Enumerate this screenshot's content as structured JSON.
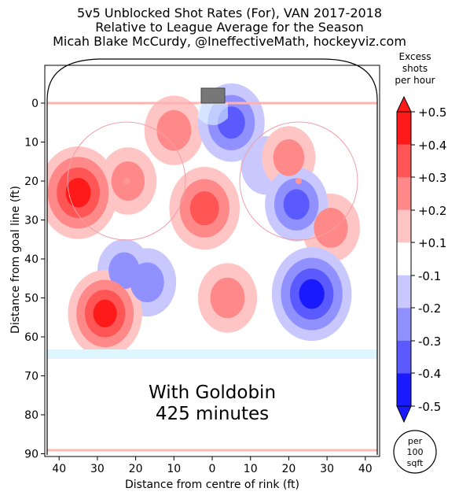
{
  "header": {
    "title": "5v5 Unblocked Shot Rates (For), VAN 2017-2018",
    "subtitle": "Relative to League Average for the Season",
    "credit": "Micah Blake McCurdy, @IneffectiveMath, hockeyviz.com"
  },
  "overlay": {
    "line1": "With Goldobin",
    "line2": "425 minutes"
  },
  "unit_badge": {
    "line1": "per",
    "line2": "100",
    "line3": "sqft"
  },
  "chart_data": {
    "type": "heatmap",
    "title": "5v5 Unblocked Shot Rates (For), VAN 2017-2018",
    "subtitle": "Relative to League Average for the Season",
    "xlabel": "Distance from centre of rink (ft)",
    "ylabel": "Distance from goal line (ft)",
    "xlim": [
      43,
      -43
    ],
    "ylim": [
      90,
      -10
    ],
    "x_ticks": [
      40,
      30,
      20,
      10,
      0,
      10,
      20,
      30,
      40
    ],
    "x_tick_values": [
      -40,
      -30,
      -20,
      -10,
      0,
      10,
      20,
      30,
      40
    ],
    "y_ticks": [
      0,
      10,
      20,
      30,
      40,
      50,
      60,
      70,
      80,
      90
    ],
    "grid": false,
    "colorbar": {
      "title": [
        "Excess",
        "shots",
        "per hour"
      ],
      "tick_labels": [
        "+0.5",
        "+0.4",
        "+0.3",
        "+0.2",
        "+0.1",
        "-0.1",
        "-0.2",
        "-0.3",
        "-0.4",
        "-0.5"
      ],
      "levels": [
        0.5,
        0.4,
        0.3,
        0.2,
        0.1,
        -0.1,
        -0.2,
        -0.3,
        -0.4,
        -0.5
      ],
      "colors": [
        "#ff1a1a",
        "#ff5555",
        "#ff8888",
        "#ffc4c4",
        "#ffffff",
        "#c8c8ff",
        "#9090ff",
        "#5a5aff",
        "#1a1aff"
      ]
    },
    "hotspots": [
      {
        "x": 35,
        "y": 23,
        "value": 0.47
      },
      {
        "x": 28,
        "y": 54,
        "value": 0.42
      },
      {
        "x": 2,
        "y": 27,
        "value": 0.38
      },
      {
        "x": 22,
        "y": 20,
        "value": 0.24
      },
      {
        "x": 10,
        "y": 7,
        "value": 0.26
      },
      {
        "x": -4,
        "y": 50,
        "value": 0.26
      },
      {
        "x": -31,
        "y": 32,
        "value": 0.25
      },
      {
        "x": -20,
        "y": 14,
        "value": 0.2
      },
      {
        "x": -26,
        "y": 49,
        "value": -0.48
      },
      {
        "x": -5,
        "y": 5,
        "value": -0.34
      },
      {
        "x": -22,
        "y": 26,
        "value": -0.3
      },
      {
        "x": 17,
        "y": 46,
        "value": -0.25
      },
      {
        "x": 23,
        "y": 43,
        "value": -0.2
      },
      {
        "x": -14,
        "y": 16,
        "value": -0.16
      }
    ]
  }
}
